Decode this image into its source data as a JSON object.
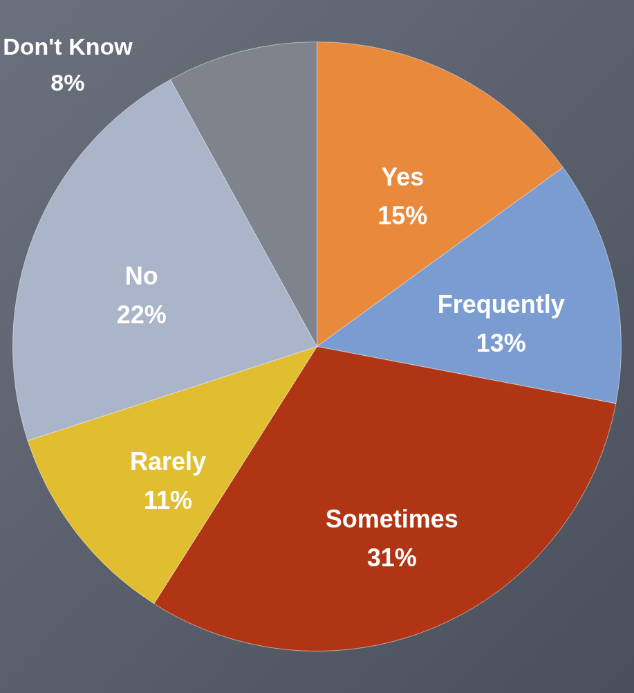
{
  "chart_data": {
    "type": "pie",
    "categories": [
      "Yes",
      "Frequently",
      "Sometimes",
      "Rarely",
      "No",
      "Don't Know"
    ],
    "values": [
      15,
      13,
      31,
      11,
      22,
      8
    ],
    "colors": [
      "#e8893c",
      "#7a9cd0",
      "#b03515",
      "#e0be30",
      "#aab5ca",
      "#7e838c"
    ],
    "value_labels": [
      "15%",
      "13%",
      "31%",
      "11%",
      "22%",
      "8%"
    ]
  }
}
